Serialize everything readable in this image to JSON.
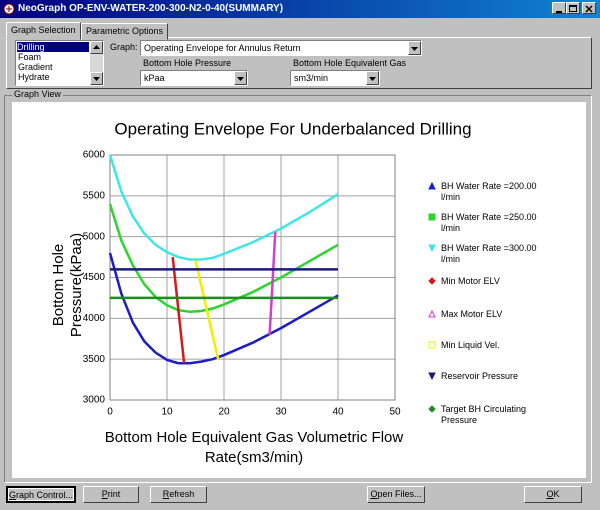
{
  "window_title": "NeoGraph OP-ENV-WATER-200-300-N2-0-40(SUMMARY)",
  "tabs": [
    "Graph Selection",
    "Parametric Options"
  ],
  "list": [
    "Drilling",
    "Foam",
    "Gradient",
    "Hydrate"
  ],
  "graph_label": "Graph:",
  "graph_value": "Operating Envelope for Annulus Return",
  "fields": [
    {
      "label": "Bottom Hole Pressure",
      "value": "kPaa"
    },
    {
      "label": "Bottom Hole Equivalent Gas",
      "value": "sm3/min"
    }
  ],
  "group_label": "Graph View",
  "buttons": [
    "Graph Control...",
    "Print",
    "Refresh",
    "Open Files...",
    "OK"
  ],
  "chart_data": {
    "type": "line",
    "title": "Operating Envelope For Underbalanced Drilling",
    "x_label": "Bottom Hole Equivalent Gas Volumetric Flow Rate(sm3/min)",
    "y_label": "Bottom Hole Pressure(kPaa)",
    "xlim": [
      0,
      50
    ],
    "xticks": [
      0,
      10,
      20,
      30,
      40,
      50
    ],
    "ylim": [
      3000,
      6000
    ],
    "yticks": [
      3000,
      3500,
      4000,
      4500,
      5000,
      5500,
      6000
    ],
    "grid": true,
    "legend": "right",
    "series": [
      {
        "name": "BH Water Rate =200.00 l/min",
        "color": "#1c1cc8",
        "marker": "triangle-up",
        "x": [
          0,
          2,
          4,
          6,
          8,
          10,
          12,
          14,
          16,
          18,
          20,
          25,
          30,
          35,
          40
        ],
        "values": [
          4800,
          4300,
          3950,
          3720,
          3580,
          3490,
          3450,
          3450,
          3470,
          3500,
          3550,
          3700,
          3880,
          4080,
          4280
        ]
      },
      {
        "name": "BH Water Rate =250.00 l/min",
        "color": "#2ed42e",
        "marker": "square",
        "x": [
          0,
          2,
          4,
          6,
          8,
          10,
          12,
          14,
          16,
          18,
          20,
          25,
          30,
          35,
          40
        ],
        "values": [
          5400,
          4950,
          4650,
          4420,
          4260,
          4160,
          4100,
          4080,
          4090,
          4120,
          4170,
          4320,
          4500,
          4700,
          4900
        ]
      },
      {
        "name": "BH Water Rate =300.00 l/min",
        "color": "#40e6e6",
        "marker": "triangle-down",
        "x": [
          0,
          2,
          4,
          6,
          8,
          10,
          12,
          14,
          16,
          18,
          20,
          25,
          30,
          35,
          40
        ],
        "values": [
          6000,
          5550,
          5250,
          5040,
          4900,
          4810,
          4750,
          4720,
          4720,
          4740,
          4790,
          4930,
          5100,
          5300,
          5520
        ]
      },
      {
        "name": "Min Motor ELV",
        "color": "#d81818",
        "marker": "diamond",
        "x": [
          11,
          12,
          13
        ],
        "values": [
          4750,
          4100,
          3450
        ]
      },
      {
        "name": "Max Motor ELV",
        "color": "#d040d0",
        "marker": "triangle-up-open",
        "x": [
          29,
          28.5,
          28
        ],
        "values": [
          5060,
          4420,
          3800
        ]
      },
      {
        "name": "Min Liquid Vel.",
        "color": "#f0f000",
        "marker": "square-open",
        "x": [
          15,
          17,
          19
        ],
        "values": [
          4710,
          4100,
          3490
        ]
      },
      {
        "name": "Reservoir Pressure",
        "color": "#1a1a80",
        "marker": "triangle-down",
        "x": [
          0,
          40
        ],
        "values": [
          4600,
          4600
        ]
      },
      {
        "name": "Target BH Circulating Pressure",
        "color": "#1e8c1e",
        "marker": "diamond",
        "x": [
          0,
          40
        ],
        "values": [
          4250,
          4250
        ]
      }
    ]
  }
}
